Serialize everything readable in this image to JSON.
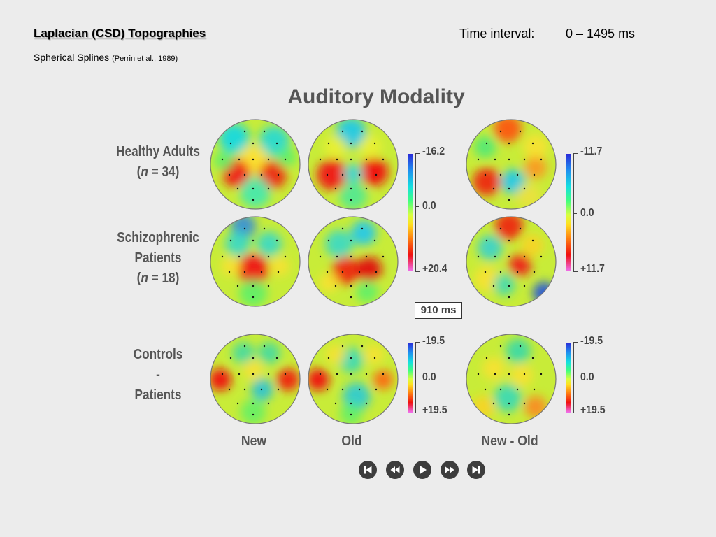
{
  "header": {
    "title": "Laplacian (CSD) Topographies",
    "subtitle_main": "Spherical Splines",
    "subtitle_ref": "(Perrin et al., 1989)",
    "time_interval_label": "Time interval:",
    "time_interval_value": "0 – 1495 ms"
  },
  "figure": {
    "heading": "Auditory Modality",
    "rows": [
      {
        "line1": "Healthy Adults",
        "line2_pre": "(",
        "line2_n": "n",
        "line2_post": " = 34)"
      },
      {
        "line1": "Schizophrenic",
        "line2": "Patients",
        "line3_pre": "(",
        "line3_n": "n",
        "line3_post": " = 18)"
      },
      {
        "line1": "Controls",
        "line2": "-",
        "line3": "Patients"
      }
    ],
    "columns": [
      "New",
      "Old",
      "New - Old"
    ],
    "scales": {
      "left_top": {
        "top": "-16.2",
        "mid": "0.0",
        "bottom": "+20.4"
      },
      "right_top": {
        "top": "-11.7",
        "mid": "0.0",
        "bottom": "+11.7"
      },
      "left_bottom": {
        "top": "-19.5",
        "mid": "0.0",
        "bottom": "+19.5"
      },
      "right_bottom": {
        "top": "-19.5",
        "mid": "0.0",
        "bottom": "+19.5"
      }
    },
    "time_point": "910 ms"
  },
  "controls": {
    "icons": [
      "skip-to-start-icon",
      "rewind-icon",
      "play-icon",
      "fast-forward-icon",
      "skip-to-end-icon"
    ]
  },
  "colors": {
    "background": "#ececec",
    "label_gray": "#555555",
    "button": "#3d3d3d"
  }
}
